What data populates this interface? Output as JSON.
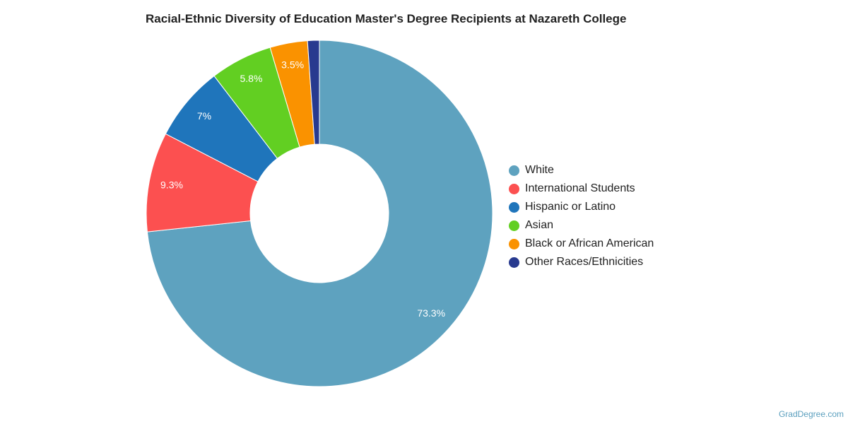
{
  "chart_data": {
    "type": "pie",
    "title": "Racial-Ethnic Diversity of Education Master's Degree Recipients at Nazareth College",
    "categories": [
      "White",
      "International Students",
      "Hispanic or Latino",
      "Asian",
      "Black or African American",
      "Other Races/Ethnicities"
    ],
    "values": [
      73.3,
      9.3,
      7.0,
      5.8,
      3.5,
      1.1
    ],
    "labels": [
      "73.3%",
      "9.3%",
      "7%",
      "5.8%",
      "3.5%",
      ""
    ],
    "colors": [
      "#5ea2bf",
      "#fc5050",
      "#1f75bb",
      "#62cf22",
      "#fa9200",
      "#283a8f"
    ],
    "donut": true,
    "legend_position": "right"
  },
  "source": "GradDegree.com"
}
